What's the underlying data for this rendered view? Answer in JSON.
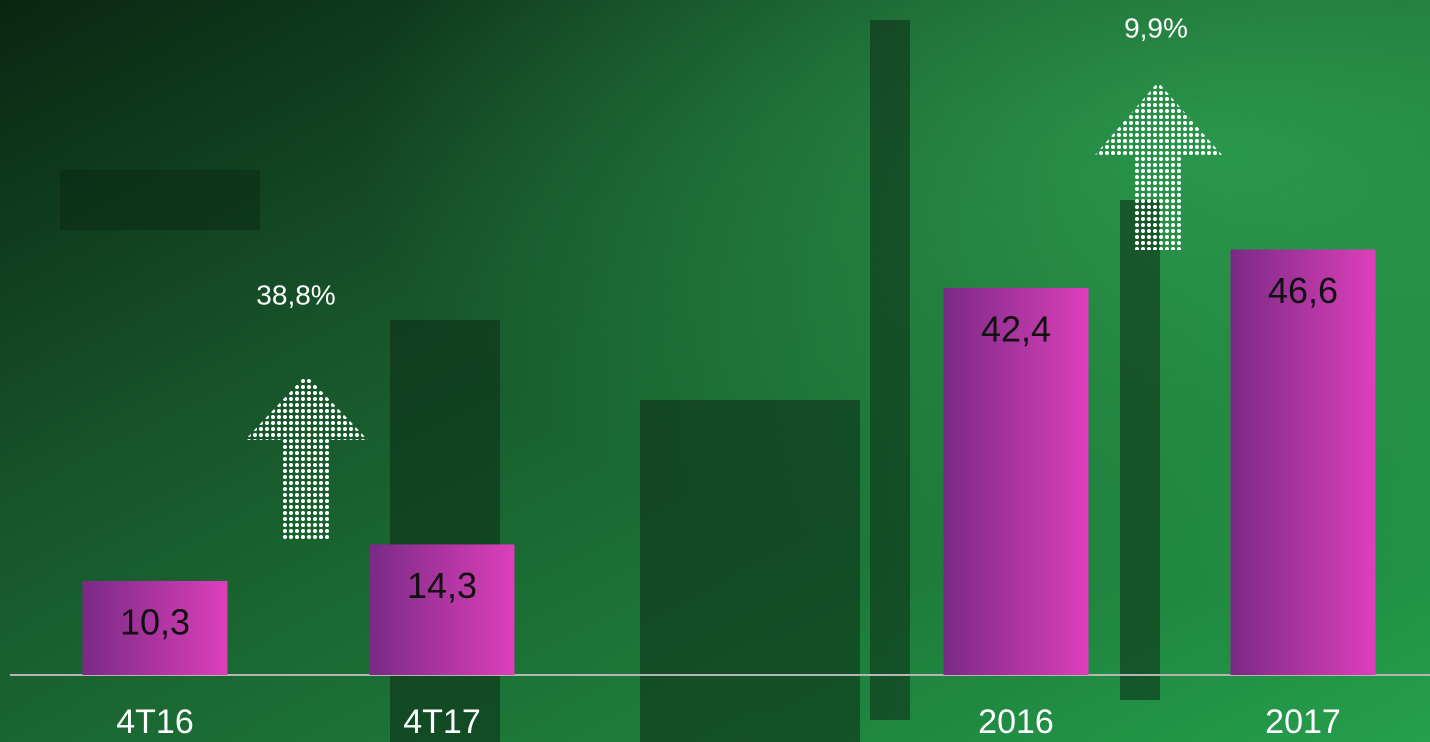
{
  "chart_data": {
    "type": "bar",
    "categories": [
      "4T16",
      "4T17",
      null,
      "2016",
      "2017"
    ],
    "values": [
      10.3,
      14.3,
      null,
      42.4,
      46.6
    ],
    "value_labels": [
      "10,3",
      "14,3",
      null,
      "42,4",
      "46,6"
    ],
    "annotations": [
      "38,8%",
      "9,9%"
    ]
  }
}
